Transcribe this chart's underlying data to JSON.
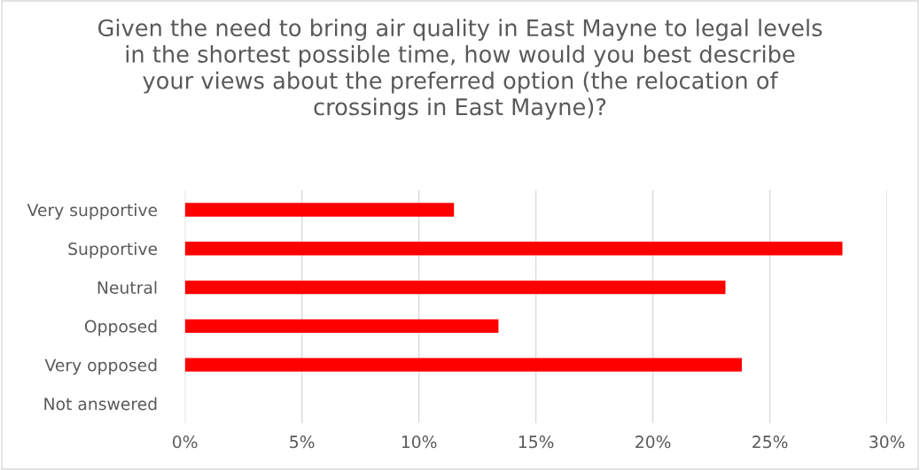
{
  "chart_data": {
    "type": "bar",
    "orientation": "horizontal",
    "title": "Given the need to bring air quality in East Mayne to legal levels\nin the shortest possible time, how would you best describe\nyour views about the preferred option (the relocation of\ncrossings in East Mayne)?",
    "categories": [
      "Very supportive",
      "Supportive",
      "Neutral",
      "Opposed",
      "Very opposed",
      "Not answered"
    ],
    "values": [
      11.5,
      28.1,
      23.1,
      13.4,
      23.8,
      null
    ],
    "color": "#ff0000",
    "xlim": [
      0,
      30
    ],
    "xticks": [
      {
        "value": 0,
        "label": "0%"
      },
      {
        "value": 5,
        "label": "5%"
      },
      {
        "value": 10,
        "label": "10%"
      },
      {
        "value": 15,
        "label": "15%"
      },
      {
        "value": 20,
        "label": "20%"
      },
      {
        "value": 25,
        "label": "25%"
      },
      {
        "value": 30,
        "label": "30%"
      }
    ],
    "grid": "x",
    "legend": false
  }
}
